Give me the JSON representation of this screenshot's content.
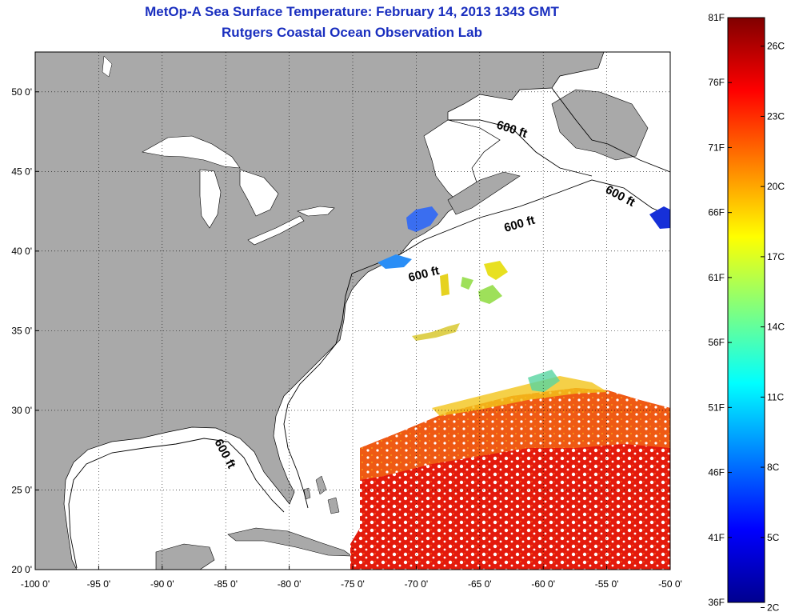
{
  "title": {
    "line1": "MetOp-A Sea Surface Temperature:  February 14, 2013 1343 GMT",
    "line2": "Rutgers Coastal Ocean Observation Lab"
  },
  "map": {
    "lon_range": [
      -100,
      -50
    ],
    "lat_range": [
      20,
      52.5
    ],
    "lon_ticks": [
      "-100 0'",
      "-95 0'",
      "-90 0'",
      "-85 0'",
      "-80 0'",
      "-75 0'",
      "-70 0'",
      "-65 0'",
      "-60 0'",
      "-55 0'",
      "-50 0'"
    ],
    "lat_ticks": [
      "50 0'",
      "45 0'",
      "40 0'",
      "35 0'",
      "30 0'",
      "25 0'",
      "20 0'"
    ],
    "contour_labels": [
      "600 ft",
      "600 ft",
      "600 ft",
      "600 ft",
      "600 ft"
    ],
    "land_color": "#a9a9a9",
    "grid": true
  },
  "colorbar": {
    "f_labels": [
      "81F",
      "76F",
      "71F",
      "66F",
      "61F",
      "56F",
      "51F",
      "46F",
      "41F",
      "36F"
    ],
    "c_labels": [
      "26C",
      "23C",
      "20C",
      "17C",
      "14C",
      "11C",
      "8C",
      "5C",
      "2C"
    ],
    "range_f": [
      36,
      81
    ],
    "colormap": "jet"
  }
}
